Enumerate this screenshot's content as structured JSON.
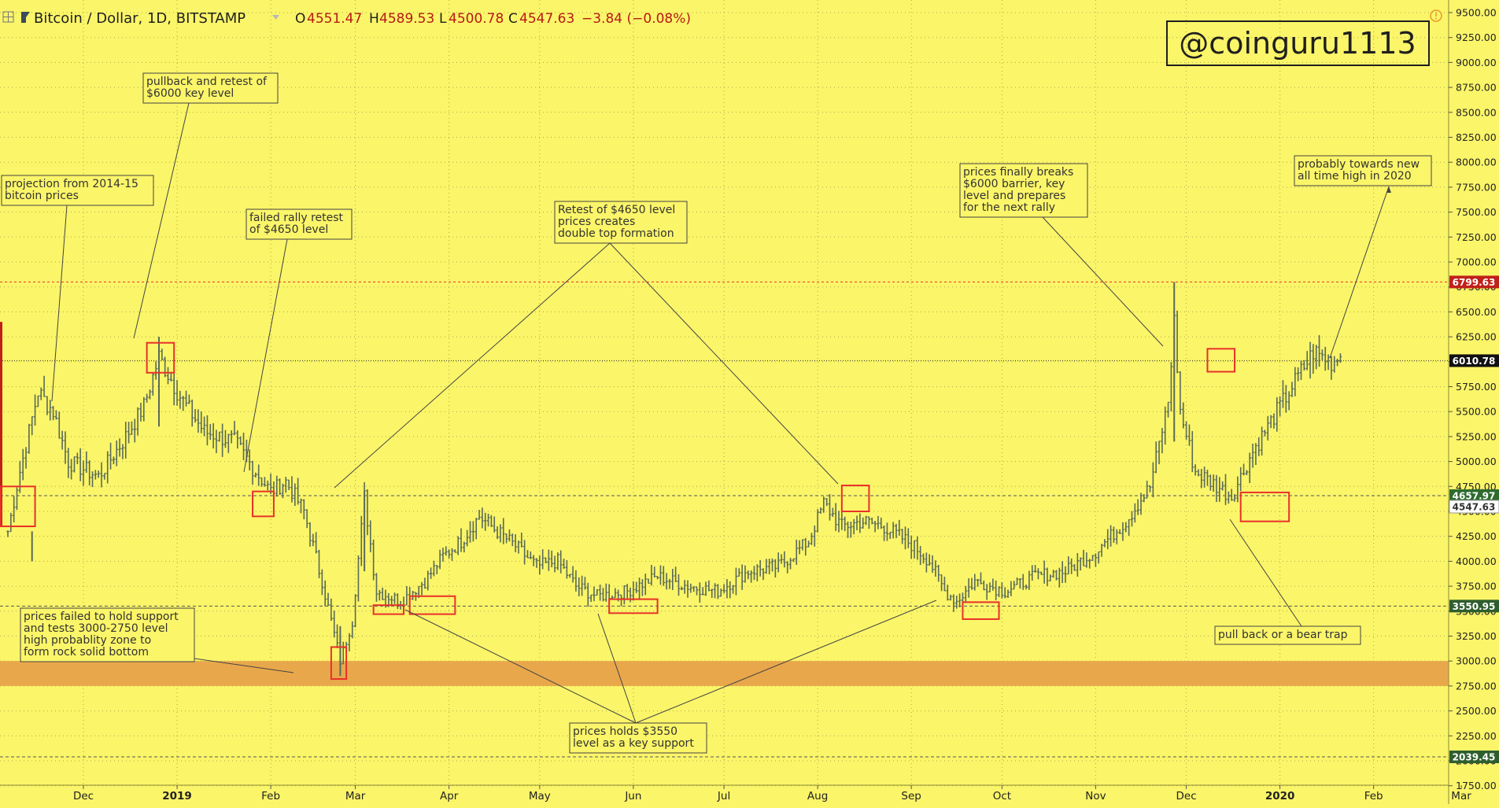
{
  "header": {
    "symbol": "Bitcoin / Dollar, 1D, BITSTAMP",
    "o_label": "O",
    "o_value": "4551.47",
    "h_label": "H",
    "h_value": "4589.53",
    "l_label": "L",
    "l_value": "4500.78",
    "c_label": "C",
    "c_value": "4547.63",
    "change": "−3.84 (−0.08%)"
  },
  "watermark": "@coinguru1113",
  "icons": {
    "grid": "grid-icon",
    "symbol": "candle-icon",
    "dropdown": "chevron-down-icon",
    "alert": "alert-icon"
  },
  "colors": {
    "background": "#fbf569",
    "candle": "#5a6b57",
    "annotation_box": "#e8312a",
    "support_zone": "#e8a24a",
    "resistance_line": "#e8312a",
    "price_line": "#555555"
  },
  "chart_data": {
    "type": "candlestick",
    "title": "Bitcoin / Dollar, 1D, BITSTAMP",
    "xlabel": "",
    "ylabel": "",
    "ylim": [
      1750,
      9600
    ],
    "yticks": [
      "9500.00",
      "9250.00",
      "9000.00",
      "8750.00",
      "8500.00",
      "8250.00",
      "8000.00",
      "7750.00",
      "7500.00",
      "7250.00",
      "7000.00",
      "6750.00",
      "6500.00",
      "6250.00",
      "6000.00",
      "5750.00",
      "5500.00",
      "5250.00",
      "5000.00",
      "4750.00",
      "4500.00",
      "4250.00",
      "4000.00",
      "3750.00",
      "3500.00",
      "3250.00",
      "3000.00",
      "2750.00",
      "2500.00",
      "2250.00",
      "2000.00",
      "1750.00"
    ],
    "xticks": [
      {
        "label": "Dec",
        "day": 25
      },
      {
        "label": "2019",
        "day": 56
      },
      {
        "label": "Feb",
        "day": 87
      },
      {
        "label": "Mar",
        "day": 115
      },
      {
        "label": "Apr",
        "day": 146
      },
      {
        "label": "May",
        "day": 176
      },
      {
        "label": "Jun",
        "day": 207
      },
      {
        "label": "Jul",
        "day": 237
      },
      {
        "label": "Aug",
        "day": 268
      },
      {
        "label": "Sep",
        "day": 299
      },
      {
        "label": "Oct",
        "day": 329
      },
      {
        "label": "Nov",
        "day": 360
      },
      {
        "label": "Dec",
        "day": 390
      },
      {
        "label": "2020",
        "day": 421
      },
      {
        "label": "Feb",
        "day": 452
      },
      {
        "label": "Mar",
        "day": 481
      }
    ],
    "series_anchors": [
      [
        0,
        4300
      ],
      [
        4,
        4900
      ],
      [
        10,
        5700
      ],
      [
        15,
        5500
      ],
      [
        20,
        5000
      ],
      [
        30,
        4850
      ],
      [
        38,
        5200
      ],
      [
        45,
        5550
      ],
      [
        50,
        6050
      ],
      [
        58,
        5600
      ],
      [
        65,
        5300
      ],
      [
        75,
        5200
      ],
      [
        82,
        4900
      ],
      [
        87,
        4700
      ],
      [
        92,
        4800
      ],
      [
        98,
        4500
      ],
      [
        104,
        3800
      ],
      [
        110,
        3000
      ],
      [
        114,
        3400
      ],
      [
        118,
        4650
      ],
      [
        122,
        3700
      ],
      [
        130,
        3600
      ],
      [
        138,
        3800
      ],
      [
        144,
        4050
      ],
      [
        150,
        4200
      ],
      [
        156,
        4450
      ],
      [
        162,
        4300
      ],
      [
        168,
        4150
      ],
      [
        175,
        3950
      ],
      [
        182,
        4000
      ],
      [
        188,
        3750
      ],
      [
        195,
        3650
      ],
      [
        205,
        3700
      ],
      [
        215,
        3850
      ],
      [
        225,
        3750
      ],
      [
        235,
        3700
      ],
      [
        245,
        3900
      ],
      [
        255,
        3950
      ],
      [
        265,
        4200
      ],
      [
        270,
        4580
      ],
      [
        276,
        4350
      ],
      [
        283,
        4400
      ],
      [
        290,
        4350
      ],
      [
        300,
        4150
      ],
      [
        305,
        4000
      ],
      [
        310,
        3700
      ],
      [
        314,
        3600
      ],
      [
        320,
        3800
      ],
      [
        330,
        3700
      ],
      [
        340,
        3850
      ],
      [
        350,
        3900
      ],
      [
        360,
        4100
      ],
      [
        370,
        4400
      ],
      [
        378,
        4750
      ],
      [
        384,
        5600
      ],
      [
        386,
        6400
      ],
      [
        388,
        5500
      ],
      [
        393,
        4900
      ],
      [
        398,
        4800
      ],
      [
        405,
        4650
      ],
      [
        412,
        5100
      ],
      [
        420,
        5500
      ],
      [
        426,
        5800
      ],
      [
        432,
        6100
      ],
      [
        438,
        6000
      ],
      [
        441,
        6050
      ]
    ],
    "key_levels": [
      {
        "label": "6799.63",
        "value": 6799.63,
        "style": "red-dashed"
      },
      {
        "label": "6010.78",
        "value": 6010.78,
        "style": "dark-dotted"
      },
      {
        "label": "4657.97",
        "value": 4657.97,
        "style": "dark-dashed"
      },
      {
        "label": "4547.63",
        "value": 4547.63,
        "style": "current-price"
      },
      {
        "label": "3550.95",
        "value": 3550.95,
        "style": "dark-dashed"
      },
      {
        "label": "2039.45",
        "value": 2039.45,
        "style": "dark-dashed"
      }
    ],
    "support_zone": {
      "low": 2750,
      "high": 3000
    },
    "highlight_boxes": [
      {
        "day0": -8,
        "day1": 9,
        "lo": 4350,
        "hi": 4750
      },
      {
        "day0": 46,
        "day1": 55,
        "lo": 5890,
        "hi": 6190
      },
      {
        "day0": 81,
        "day1": 88,
        "lo": 4450,
        "hi": 4700
      },
      {
        "day0": 107,
        "day1": 112,
        "lo": 2820,
        "hi": 3140
      },
      {
        "day0": 121,
        "day1": 131,
        "lo": 3470,
        "hi": 3560
      },
      {
        "day0": 133,
        "day1": 148,
        "lo": 3470,
        "hi": 3650
      },
      {
        "day0": 199,
        "day1": 215,
        "lo": 3480,
        "hi": 3620
      },
      {
        "day0": 276,
        "day1": 285,
        "lo": 4500,
        "hi": 4760
      },
      {
        "day0": 316,
        "day1": 328,
        "lo": 3420,
        "hi": 3590
      },
      {
        "day0": 397,
        "day1": 406,
        "lo": 5900,
        "hi": 6130
      },
      {
        "day0": 408,
        "day1": 424,
        "lo": 4400,
        "hi": 4690
      }
    ],
    "annotations": [
      {
        "id": "projection",
        "lines": [
          "projection from 2014-15",
          "bitcoin prices"
        ]
      },
      {
        "id": "pullback",
        "lines": [
          "pullback and retest of",
          "$6000 key level"
        ]
      },
      {
        "id": "failed-rally",
        "lines": [
          "failed rally retest",
          "of $4650 level"
        ]
      },
      {
        "id": "double-top",
        "lines": [
          "Retest of $4650 level",
          "prices creates",
          "double top formation"
        ]
      },
      {
        "id": "breakout",
        "lines": [
          "prices finally breaks",
          "$6000 barrier, key",
          "level and prepares",
          "for the next rally"
        ]
      },
      {
        "id": "ath",
        "lines": [
          "probably towards new",
          "all time high in 2020"
        ]
      },
      {
        "id": "failed-support",
        "lines": [
          "prices failed to hold support",
          "and tests 3000-2750 level",
          "high probablity zone to",
          "form rock solid bottom"
        ]
      },
      {
        "id": "holds-support",
        "lines": [
          "prices holds $3550",
          "level as a key support"
        ]
      },
      {
        "id": "bear-trap",
        "lines": [
          "pull back or a bear trap"
        ]
      }
    ]
  }
}
